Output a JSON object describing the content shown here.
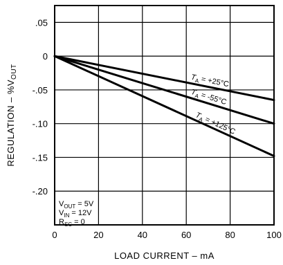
{
  "chart_data": {
    "type": "line",
    "xlabel": "LOAD CURRENT – mA",
    "ylabel": "REGULATION – %V",
    "ylabel_sub": "OUT",
    "xlim": [
      0,
      100
    ],
    "ylim": [
      -0.25,
      0.075
    ],
    "x_ticks": [
      0,
      20,
      40,
      60,
      80,
      100
    ],
    "x_tick_labels": [
      "0",
      "20",
      "40",
      "60",
      "80",
      "100"
    ],
    "y_ticks": [
      0.05,
      0,
      -0.05,
      -0.1,
      -0.15,
      -0.2
    ],
    "y_tick_labels": [
      ".05",
      "0",
      "-.05",
      "-.10",
      "-.15",
      "-.20"
    ],
    "grid": true,
    "series": [
      {
        "name": "T_A = +25°C",
        "label_main": "T",
        "label_sub": "A",
        "label_rest": " = +25°C",
        "x": [
          0,
          100
        ],
        "y": [
          0,
          -0.065
        ]
      },
      {
        "name": "T_A = -55°C",
        "label_main": "T",
        "label_sub": "A",
        "label_rest": " = -55°C",
        "x": [
          0,
          100
        ],
        "y": [
          0,
          -0.1
        ]
      },
      {
        "name": "T_A = +125°C",
        "label_main": "T",
        "label_sub": "A",
        "label_rest": " = +125°C",
        "x": [
          0,
          100
        ],
        "y": [
          0,
          -0.148
        ]
      }
    ],
    "conditions": [
      {
        "main": "V",
        "sub": "OUT",
        "rest": " = 5V"
      },
      {
        "main": "V",
        "sub": "IN",
        "rest": " = 12V"
      },
      {
        "main": "R",
        "sub": "SC",
        "rest": " = 0"
      }
    ]
  }
}
